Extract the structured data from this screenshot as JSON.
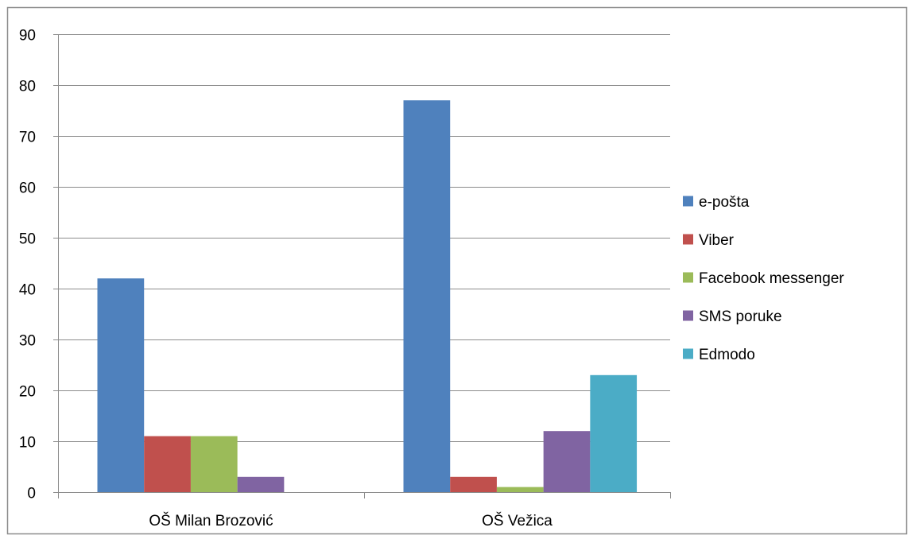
{
  "chart_data": {
    "type": "bar",
    "categories": [
      "OŠ Milan Brozović",
      "OŠ Vežica"
    ],
    "series": [
      {
        "name": "e-pošta",
        "values": [
          42,
          77
        ],
        "color": "#4F81BD"
      },
      {
        "name": "Viber",
        "values": [
          11,
          3
        ],
        "color": "#C0504D"
      },
      {
        "name": "Facebook messenger",
        "values": [
          11,
          1
        ],
        "color": "#9BBB59"
      },
      {
        "name": "SMS poruke",
        "values": [
          3,
          12
        ],
        "color": "#8064A2"
      },
      {
        "name": "Edmodo",
        "values": [
          0,
          23
        ],
        "color": "#4BACC6"
      }
    ],
    "y_ticks": [
      "0",
      "10",
      "20",
      "30",
      "40",
      "50",
      "60",
      "70",
      "80",
      "90"
    ],
    "ylim": [
      0,
      90
    ],
    "grid": true,
    "legend_position": "right",
    "title": "",
    "xlabel": "",
    "ylabel": ""
  }
}
